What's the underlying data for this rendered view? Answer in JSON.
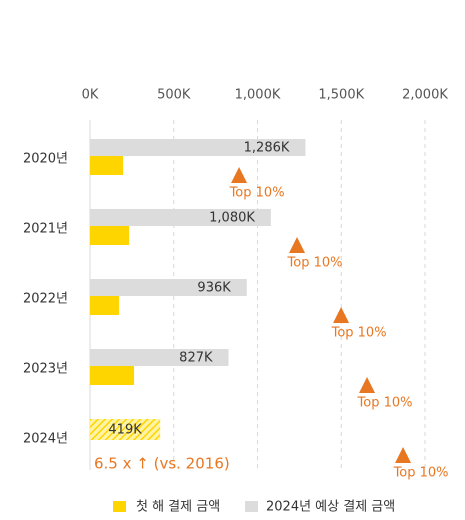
{
  "chart_data": {
    "type": "bar",
    "orientation": "horizontal",
    "categories": [
      "2020년",
      "2021년",
      "2022년",
      "2023년",
      "2024년"
    ],
    "series": [
      {
        "name": "첫 해 결제 금액",
        "color": "#ffd500",
        "values": [
          197,
          233,
          173,
          263,
          null
        ]
      },
      {
        "name": "2024년 예상 결제 금액",
        "color": "#dcdcdc",
        "values": [
          1286,
          1080,
          936,
          827,
          419
        ],
        "value_labels": [
          "1,286K",
          "1,080K",
          "936K",
          "827K",
          "419K"
        ]
      },
      {
        "name": "Top 10%",
        "color": "#e87722",
        "marker": "triangle",
        "values": [
          890,
          1236,
          1499,
          1654,
          1869
        ]
      }
    ],
    "xlim": [
      0,
      2000
    ],
    "xticks": [
      {
        "value": 0,
        "label": "0K"
      },
      {
        "value": 500,
        "label": "500K"
      },
      {
        "value": 1000,
        "label": "1,000K"
      },
      {
        "value": 1500,
        "label": "1,500K"
      },
      {
        "value": 2000,
        "label": "2,000K"
      }
    ],
    "grid": true,
    "annotation": "6.5  x ↑ (vs. 2016)",
    "legend": "bottom"
  }
}
